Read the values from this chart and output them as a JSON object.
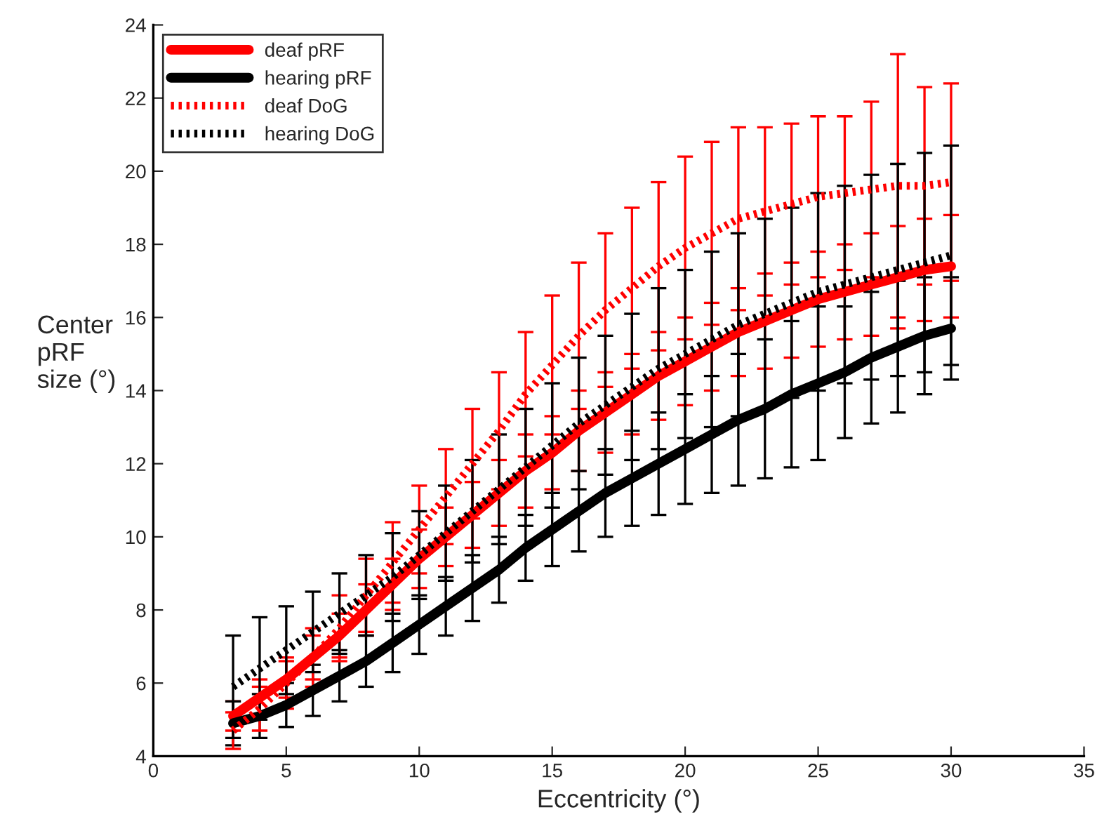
{
  "chart_data": {
    "type": "line",
    "xlabel": "Eccentricity (°)",
    "ylabel": "Center\npRF\nsize (°)",
    "x": [
      3,
      4,
      5,
      6,
      7,
      8,
      9,
      10,
      11,
      12,
      13,
      14,
      15,
      16,
      17,
      18,
      19,
      20,
      21,
      22,
      23,
      24,
      25,
      26,
      27,
      28,
      29,
      30
    ],
    "xlim": [
      0,
      35
    ],
    "xticks": [
      0,
      5,
      10,
      15,
      20,
      25,
      30,
      35
    ],
    "ylim": [
      4,
      24
    ],
    "yticks": [
      4,
      6,
      8,
      10,
      12,
      14,
      16,
      18,
      20,
      22,
      24
    ],
    "grid": false,
    "legend": "top left",
    "marker": "none",
    "series": [
      {
        "name": "deaf pRF",
        "color": "#ff0000",
        "line_style": "solid",
        "values": [
          5.1,
          5.6,
          6.1,
          6.7,
          7.3,
          8.0,
          8.7,
          9.4,
          10.0,
          10.6,
          11.2,
          11.8,
          12.3,
          12.9,
          13.4,
          13.9,
          14.4,
          14.8,
          15.2,
          15.6,
          15.9,
          16.2,
          16.5,
          16.7,
          16.9,
          17.1,
          17.3,
          17.4
        ],
        "errors": [
          0.4,
          0.5,
          0.5,
          0.6,
          0.6,
          0.7,
          0.7,
          0.8,
          0.8,
          0.9,
          0.9,
          1.0,
          1.0,
          1.1,
          1.1,
          1.1,
          1.2,
          1.2,
          1.2,
          1.2,
          1.3,
          1.3,
          1.3,
          1.3,
          1.4,
          1.4,
          1.4,
          1.4
        ]
      },
      {
        "name": "hearing pRF",
        "color": "#000000",
        "line_style": "solid",
        "values": [
          4.9,
          5.1,
          5.4,
          5.8,
          6.2,
          6.6,
          7.1,
          7.6,
          8.1,
          8.6,
          9.1,
          9.7,
          10.2,
          10.7,
          11.2,
          11.6,
          12.0,
          12.4,
          12.8,
          13.2,
          13.5,
          13.9,
          14.2,
          14.5,
          14.9,
          15.2,
          15.5,
          15.7
        ],
        "errors": [
          0.6,
          0.6,
          0.6,
          0.7,
          0.7,
          0.7,
          0.8,
          0.8,
          0.8,
          0.9,
          0.9,
          0.9,
          1.0,
          1.1,
          1.2,
          1.3,
          1.4,
          1.5,
          1.6,
          1.8,
          1.9,
          2.0,
          2.1,
          1.8,
          1.8,
          1.8,
          1.6,
          1.4
        ]
      },
      {
        "name": "deaf DoG",
        "color": "#ff0000",
        "line_style": "dotted",
        "values": [
          4.7,
          5.3,
          6.0,
          6.7,
          7.5,
          8.4,
          9.3,
          10.2,
          11.1,
          12.0,
          12.9,
          13.9,
          14.7,
          15.5,
          16.2,
          16.8,
          17.4,
          17.9,
          18.3,
          18.7,
          18.9,
          19.1,
          19.3,
          19.4,
          19.5,
          19.6,
          19.6,
          19.7
        ],
        "errors": [
          0.5,
          0.6,
          0.7,
          0.8,
          0.9,
          1.0,
          1.1,
          1.2,
          1.3,
          1.5,
          1.6,
          1.7,
          1.9,
          2.0,
          2.1,
          2.2,
          2.3,
          2.5,
          2.5,
          2.5,
          2.3,
          2.2,
          2.2,
          2.1,
          2.4,
          3.6,
          2.7,
          2.7
        ]
      },
      {
        "name": "hearing DoG",
        "color": "#000000",
        "line_style": "dotted",
        "values": [
          5.9,
          6.4,
          6.9,
          7.4,
          7.9,
          8.4,
          8.9,
          9.5,
          10.1,
          10.7,
          11.3,
          11.9,
          12.5,
          13.1,
          13.6,
          14.1,
          14.6,
          15.0,
          15.4,
          15.8,
          16.1,
          16.4,
          16.7,
          16.9,
          17.1,
          17.3,
          17.5,
          17.7
        ],
        "errors": [
          1.4,
          1.4,
          1.2,
          1.1,
          1.1,
          1.1,
          1.2,
          1.2,
          1.3,
          1.4,
          1.5,
          1.6,
          1.7,
          1.8,
          1.9,
          2.0,
          2.2,
          2.3,
          2.4,
          2.5,
          2.6,
          2.6,
          2.7,
          2.7,
          2.8,
          2.9,
          3.0,
          3.0
        ]
      }
    ]
  }
}
